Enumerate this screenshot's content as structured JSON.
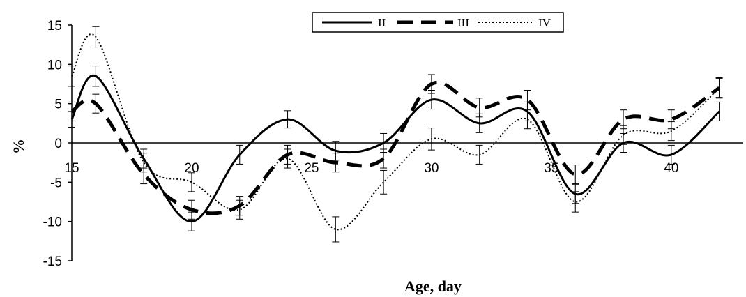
{
  "chart_data": {
    "type": "line",
    "xlabel": "Age, day",
    "ylabel": "%",
    "ylim": [
      -15,
      15
    ],
    "xlim": [
      15,
      43
    ],
    "y_ticks": [
      15,
      10,
      5,
      0,
      -5,
      -10,
      -15
    ],
    "x_ticks": [
      15,
      20,
      25,
      30,
      35,
      40
    ],
    "grid": false,
    "legend_position": "top-center",
    "series": [
      {
        "name": "II",
        "style": "solid",
        "color": "#000000",
        "x": [
          15,
          16,
          18,
          20,
          22,
          24,
          26,
          28,
          30,
          32,
          34,
          36,
          38,
          40,
          42
        ],
        "y": [
          3,
          8.5,
          -2,
          -10,
          -1.5,
          3,
          -1,
          0,
          5.5,
          2.5,
          4,
          -6.5,
          0,
          -1.5,
          4
        ],
        "err": [
          1,
          1.3,
          1.2,
          1.2,
          1.2,
          1.1,
          1.2,
          1.2,
          1.2,
          1.2,
          1.2,
          1.2,
          1.2,
          1.2,
          1.2
        ]
      },
      {
        "name": "III",
        "style": "dashed",
        "color": "#000000",
        "x": [
          15,
          16,
          18,
          20,
          22,
          24,
          26,
          28,
          30,
          32,
          34,
          36,
          38,
          40,
          42
        ],
        "y": [
          4,
          5,
          -4,
          -8.5,
          -8,
          -1.5,
          -2.5,
          -2,
          7.5,
          4.5,
          5.5,
          -4,
          3,
          3,
          7
        ],
        "err": [
          1.2,
          1.2,
          1.2,
          1.2,
          1.2,
          1.2,
          1.2,
          1.2,
          1.2,
          1.2,
          1.2,
          1.2,
          1.2,
          1.2,
          1.2
        ]
      },
      {
        "name": "IV",
        "style": "dotted",
        "color": "#000000",
        "x": [
          15,
          16,
          18,
          20,
          22,
          24,
          26,
          28,
          30,
          32,
          34,
          36,
          38,
          40,
          42
        ],
        "y": [
          8.5,
          13.5,
          -2.5,
          -5,
          -8.5,
          -2,
          -11,
          -5,
          0.5,
          -1.5,
          3,
          -7.5,
          1,
          1.5,
          7
        ],
        "err": [
          1.3,
          1.3,
          1.2,
          1.2,
          1.2,
          1.2,
          1.6,
          1.5,
          1.4,
          1.2,
          1.2,
          1.3,
          1.2,
          1.2,
          1.3
        ]
      }
    ]
  }
}
